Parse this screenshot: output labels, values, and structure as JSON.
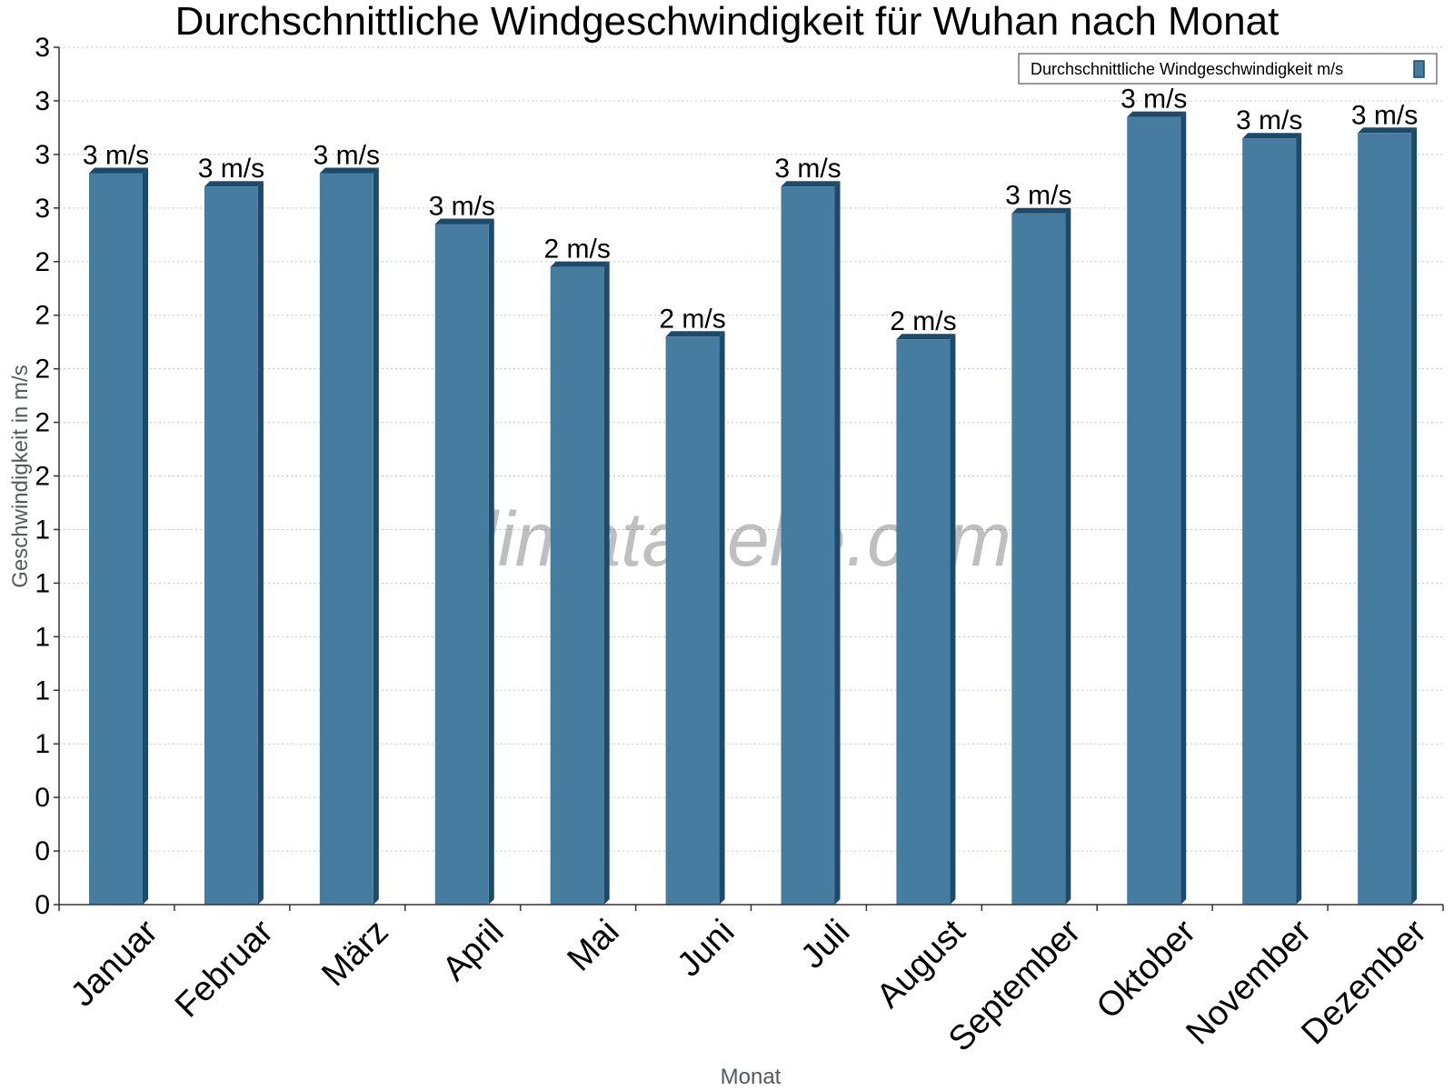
{
  "chart_data": {
    "type": "bar",
    "title": "Durchschnittliche Windgeschwindigkeit für Wuhan nach Monat",
    "xlabel": "Monat",
    "ylabel": "Geschwindigkeit in m/s",
    "categories": [
      "Januar",
      "Februar",
      "März",
      "April",
      "Mai",
      "Juni",
      "Juli",
      "August",
      "September",
      "Oktober",
      "November",
      "Dezember"
    ],
    "series": [
      {
        "name": "Durchschnittliche Windgeschwindigkeit m/s",
        "values": [
          2.73,
          2.68,
          2.73,
          2.54,
          2.38,
          2.12,
          2.68,
          2.11,
          2.58,
          2.94,
          2.86,
          2.88
        ],
        "data_labels": [
          "3 m/s",
          "3 m/s",
          "3 m/s",
          "3 m/s",
          "2 m/s",
          "2 m/s",
          "3 m/s",
          "2 m/s",
          "3 m/s",
          "3 m/s",
          "3 m/s",
          "3 m/s"
        ],
        "color": "#467c9f",
        "side_color": "#1b4a6b"
      }
    ],
    "ylim": [
      0,
      3.2
    ],
    "y_ticks": [
      0,
      0.2,
      0.4,
      0.6,
      0.8,
      1.0,
      1.2,
      1.4,
      1.6,
      1.8,
      2.0,
      2.2,
      2.4,
      2.6,
      2.8,
      3.0,
      3.2
    ],
    "y_tick_labels": [
      "0",
      "0",
      "0",
      "1",
      "1",
      "1",
      "1",
      "1",
      "2",
      "2",
      "2",
      "2",
      "2",
      "3",
      "3",
      "3",
      "3"
    ],
    "grid": true,
    "legend_position": "top-right",
    "watermark": "klimatabelle.com"
  }
}
